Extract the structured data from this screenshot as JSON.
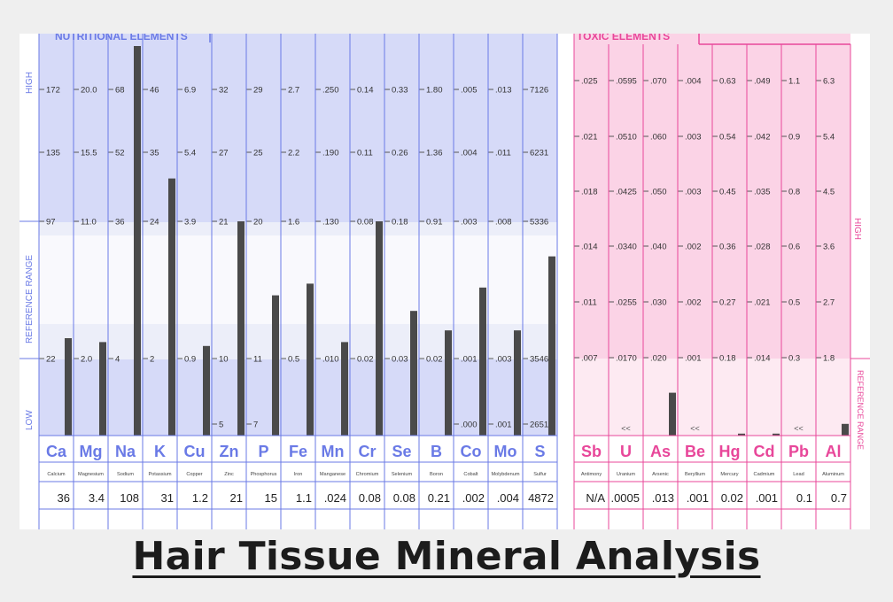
{
  "title": "Hair Tissue Mineral Analysis",
  "colors": {
    "nutritional": "#6a7ae6",
    "nutritional_light": "#d6daf8",
    "nutritional_lighter": "#eceef9",
    "toxic": "#e8479a",
    "toxic_light": "#fbd3e6",
    "toxic_lighter": "#fdeaf2",
    "bar": "#4a4a4a"
  },
  "nutritional": {
    "header": "NUTRITIONAL ELEMENTS",
    "side_labels": {
      "high": "HIGH",
      "reference": "REFERENCE RANGE",
      "low": "LOW"
    }
  },
  "toxic": {
    "header": "TOXIC ELEMENTS",
    "side_labels": {
      "high": "HIGH",
      "reference": "REFERENCE RANGE"
    }
  },
  "chart_data": [
    {
      "type": "bar",
      "title": "NUTRITIONAL ELEMENTS",
      "categories": [
        "Ca",
        "Mg",
        "Na",
        "K",
        "Cu",
        "Zn",
        "P",
        "Fe",
        "Mn",
        "Cr",
        "Se",
        "B",
        "Co",
        "Mo",
        "S"
      ],
      "names": [
        "Calcium",
        "Magnesium",
        "Sodium",
        "Potassium",
        "Copper",
        "Zinc",
        "Phosphorus",
        "Iron",
        "Manganese",
        "Chromium",
        "Selenium",
        "Boron",
        "Cobalt",
        "Molybdenum",
        "Sulfur"
      ],
      "values": [
        "36",
        "3.4",
        "108",
        "31",
        "1.2",
        "21",
        "15",
        "1.1",
        ".024",
        "0.08",
        "0.08",
        "0.21",
        ".002",
        ".004",
        "4872"
      ],
      "bar_levels": [
        0.25,
        0.24,
        1.0,
        0.66,
        0.23,
        0.55,
        0.36,
        0.39,
        0.24,
        0.55,
        0.32,
        0.27,
        0.38,
        0.27,
        0.46
      ],
      "scale_ticks": [
        [
          "172",
          "135",
          "97",
          "22",
          ""
        ],
        [
          "20.0",
          "15.5",
          "11.0",
          "2.0",
          ""
        ],
        [
          "68",
          "52",
          "36",
          "4",
          ""
        ],
        [
          "46",
          "35",
          "24",
          "2",
          ""
        ],
        [
          "6.9",
          "5.4",
          "3.9",
          "0.9",
          ""
        ],
        [
          "32",
          "27",
          "21",
          "10",
          "5"
        ],
        [
          "29",
          "25",
          "20",
          "11",
          "7"
        ],
        [
          "2.7",
          "2.2",
          "1.6",
          "0.5",
          ""
        ],
        [
          ".250",
          ".190",
          ".130",
          ".010",
          ""
        ],
        [
          "0.14",
          "0.11",
          "0.08",
          "0.02",
          ""
        ],
        [
          "0.33",
          "0.26",
          "0.18",
          "0.03",
          ""
        ],
        [
          "1.80",
          "1.36",
          "0.91",
          "0.02",
          ""
        ],
        [
          ".005",
          ".004",
          ".003",
          ".001",
          ".000"
        ],
        [
          ".013",
          ".011",
          ".008",
          ".003",
          ".001"
        ],
        [
          "7126",
          "6231",
          "5336",
          "3546",
          "2651"
        ]
      ]
    },
    {
      "type": "bar",
      "title": "TOXIC ELEMENTS",
      "categories": [
        "Sb",
        "U",
        "As",
        "Be",
        "Hg",
        "Cd",
        "Pb",
        "Al"
      ],
      "names": [
        "Antimony",
        "Uranium",
        "Arsenic",
        "Beryllium",
        "Mercury",
        "Cadmium",
        "Lead",
        "Aluminum"
      ],
      "values": [
        "N/A",
        ".0005",
        ".013",
        ".001",
        "0.02",
        ".001",
        "0.1",
        "0.7"
      ],
      "bar_levels": [
        0,
        0,
        0.11,
        0,
        0.005,
        0.005,
        0,
        0.03
      ],
      "below_range_markers": [
        "",
        "<<",
        "",
        "<<",
        "",
        "",
        "<<",
        ""
      ],
      "scale_ticks": [
        [
          ".025",
          ".021",
          ".018",
          ".014",
          ".011",
          ".007"
        ],
        [
          ".0595",
          ".0510",
          ".0425",
          ".0340",
          ".0255",
          ".0170"
        ],
        [
          ".070",
          ".060",
          ".050",
          ".040",
          ".030",
          ".020"
        ],
        [
          ".004",
          ".003",
          ".003",
          ".002",
          ".002",
          ".001"
        ],
        [
          "0.63",
          "0.54",
          "0.45",
          "0.36",
          "0.27",
          "0.18"
        ],
        [
          ".049",
          ".042",
          ".035",
          ".028",
          ".021",
          ".014"
        ],
        [
          "1.1",
          "0.9",
          "0.8",
          "0.6",
          "0.5",
          "0.3"
        ],
        [
          "6.3",
          "5.4",
          "4.5",
          "3.6",
          "2.7",
          "1.8"
        ]
      ]
    }
  ]
}
